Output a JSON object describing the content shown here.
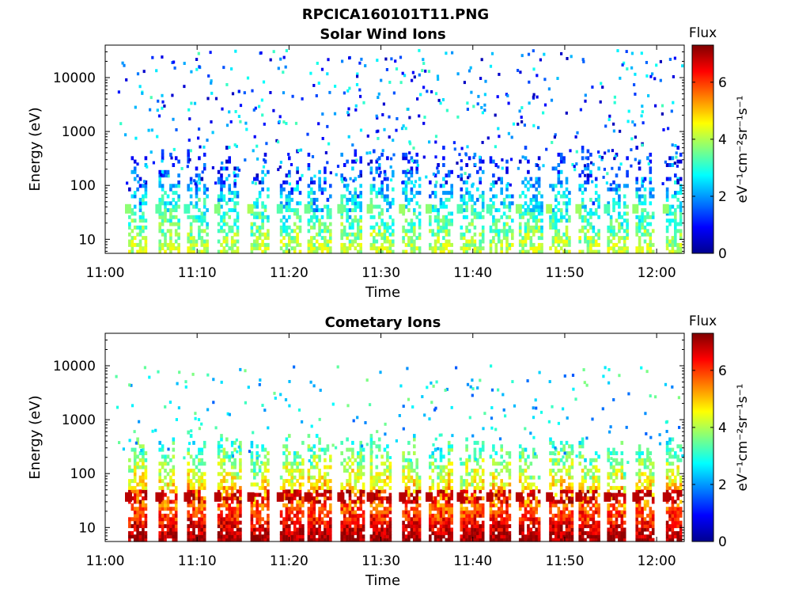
{
  "figure_title": "RPCICA160101T11.PNG",
  "colormap": {
    "name": "jet",
    "stops": [
      "#00008f",
      "#0000ff",
      "#0080ff",
      "#00ffff",
      "#80ff80",
      "#ffff00",
      "#ff8000",
      "#ff0000",
      "#800000"
    ]
  },
  "chart_data": [
    {
      "type": "heatmap",
      "title": "Solar Wind Ions",
      "xlabel": "Time",
      "ylabel": "Energy (eV)",
      "xticks": [
        "11:00",
        "11:10",
        "11:20",
        "11:30",
        "11:40",
        "11:50",
        "12:00"
      ],
      "xlim_minutes": [
        0,
        63
      ],
      "xtick_minutes": [
        0,
        10,
        20,
        30,
        40,
        50,
        60
      ],
      "ylog": true,
      "ylim": [
        5.5,
        40000
      ],
      "yticks": [
        10,
        100,
        1000,
        10000
      ],
      "ytick_labels": [
        "10",
        "100",
        "1000",
        "10000"
      ],
      "colorbar": {
        "label_top": "Flux",
        "label": "eV⁻¹cm⁻²sr⁻¹s⁻¹",
        "range": [
          0,
          7.3
        ],
        "ticks": [
          0,
          2,
          4,
          6
        ],
        "tick_labels": [
          "0",
          "2",
          "4",
          "6"
        ]
      },
      "pulse_start_minutes": [
        2.5,
        5.8,
        8.9,
        12.2,
        15.8,
        19.0,
        22.0,
        25.6,
        28.8,
        32.3,
        35.2,
        38.6,
        41.8,
        45.0,
        48.3,
        51.5,
        54.6,
        57.7,
        61.0
      ],
      "intensity_profile": "weak",
      "max_level": 4.5
    },
    {
      "type": "heatmap",
      "title": "Cometary Ions",
      "xlabel": "Time",
      "ylabel": "Energy (eV)",
      "xticks": [
        "11:00",
        "11:10",
        "11:20",
        "11:30",
        "11:40",
        "11:50",
        "12:00"
      ],
      "xlim_minutes": [
        0,
        63
      ],
      "xtick_minutes": [
        0,
        10,
        20,
        30,
        40,
        50,
        60
      ],
      "ylog": true,
      "ylim": [
        5.5,
        40000
      ],
      "yticks": [
        10,
        100,
        1000,
        10000
      ],
      "ytick_labels": [
        "10",
        "100",
        "1000",
        "10000"
      ],
      "colorbar": {
        "label_top": "Flux",
        "label": "eV⁻¹cm⁻²sr⁻¹s⁻¹",
        "range": [
          0,
          7.3
        ],
        "ticks": [
          0,
          2,
          4,
          6
        ],
        "tick_labels": [
          "0",
          "2",
          "4",
          "6"
        ]
      },
      "pulse_start_minutes": [
        2.5,
        5.8,
        8.9,
        12.2,
        15.8,
        19.0,
        22.0,
        25.6,
        28.8,
        32.3,
        35.2,
        38.6,
        41.8,
        45.0,
        48.3,
        51.5,
        54.6,
        57.7,
        61.0
      ],
      "intensity_profile": "strong",
      "max_level": 7.2
    }
  ]
}
